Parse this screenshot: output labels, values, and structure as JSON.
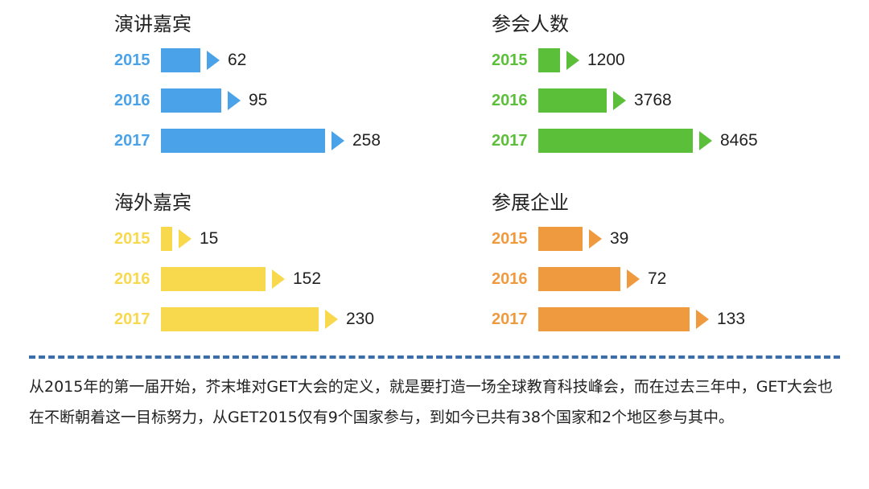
{
  "chart_data": [
    {
      "type": "bar",
      "title": "演讲嘉宾",
      "color": "#4aa3e8",
      "categories": [
        "2015",
        "2016",
        "2017"
      ],
      "values": [
        62,
        95,
        258
      ]
    },
    {
      "type": "bar",
      "title": "参会人数",
      "color": "#5cbf3a",
      "categories": [
        "2015",
        "2016",
        "2017"
      ],
      "values": [
        1200,
        3768,
        8465
      ]
    },
    {
      "type": "bar",
      "title": "海外嘉宾",
      "color": "#f8d94e",
      "categories": [
        "2015",
        "2016",
        "2017"
      ],
      "values": [
        15,
        152,
        230
      ]
    },
    {
      "type": "bar",
      "title": "参展企业",
      "color": "#ef9a3f",
      "categories": [
        "2015",
        "2016",
        "2017"
      ],
      "values": [
        39,
        72,
        133
      ]
    }
  ],
  "note": "从2015年的第一届开始，芥末堆对GET大会的定义，就是要打造一场全球教育科技峰会，而在过去三年中，GET大会也在不断朝着这一目标努力，从GET2015仅有9个国家参与，到如今已共有38个国家和2个地区参与其中。",
  "divider_color": "#3b6ea8"
}
